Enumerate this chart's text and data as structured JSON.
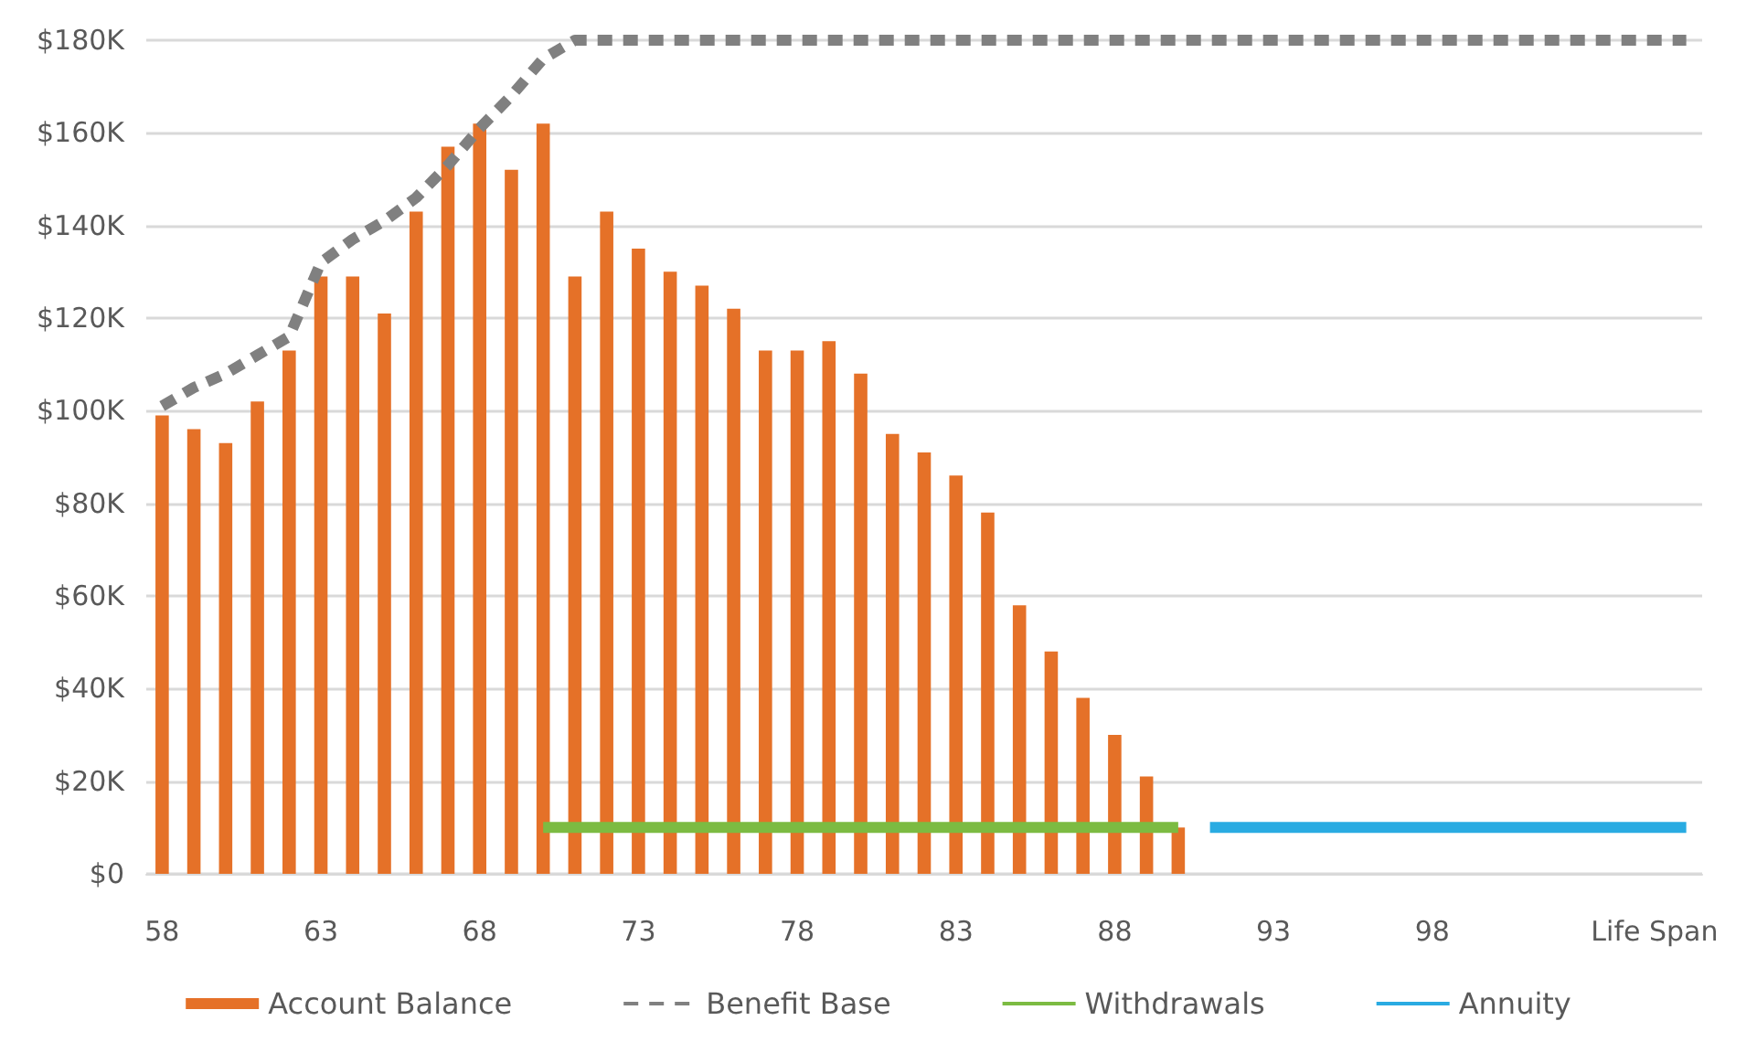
{
  "chart_data": {
    "type": "bar",
    "categories": [
      "58",
      null,
      null,
      null,
      null,
      "63",
      null,
      null,
      null,
      null,
      "68",
      null,
      null,
      null,
      null,
      "73",
      null,
      null,
      null,
      null,
      "78",
      null,
      null,
      null,
      null,
      "83",
      null,
      null,
      null,
      null,
      "88",
      null,
      null,
      null,
      null,
      "93",
      null,
      null,
      null,
      null,
      "98",
      null,
      null,
      null,
      null,
      null,
      null,
      "Life Span",
      null
    ],
    "series": [
      {
        "name": "Account Balance",
        "color": "#e57128",
        "values": [
          99,
          96,
          93,
          102,
          113,
          129,
          129,
          121,
          143,
          157,
          162,
          152,
          162,
          129,
          143,
          135,
          130,
          127,
          122,
          113,
          113,
          115,
          108,
          95,
          91,
          86,
          78,
          58,
          48,
          38,
          30,
          21,
          10,
          null,
          null,
          null,
          null,
          null,
          null,
          null,
          null,
          null,
          null,
          null,
          null,
          null,
          null,
          null,
          null
        ]
      },
      {
        "name": "Benefit Base",
        "type": "line",
        "color": "#808080",
        "line_style": "dashed",
        "values": [
          101,
          105,
          108,
          112,
          116,
          132,
          137,
          141,
          146,
          153,
          161,
          168,
          176,
          180,
          180,
          180,
          180,
          180,
          180,
          180,
          180,
          180,
          180,
          180,
          180,
          180,
          180,
          180,
          180,
          180,
          180,
          180,
          180,
          180,
          180,
          180,
          180,
          180,
          180,
          180,
          180,
          180,
          180,
          180,
          180,
          180,
          180,
          180,
          180
        ]
      },
      {
        "name": "Withdrawals",
        "type": "line",
        "color": "#7cbb42",
        "line_style": "solid",
        "values": [
          null,
          null,
          null,
          null,
          null,
          null,
          null,
          null,
          null,
          null,
          null,
          null,
          10,
          10,
          10,
          10,
          10,
          10,
          10,
          10,
          10,
          10,
          10,
          10,
          10,
          10,
          10,
          10,
          10,
          10,
          10,
          10,
          10,
          null,
          null,
          null,
          null,
          null,
          null,
          null,
          null,
          null,
          null,
          null,
          null,
          null,
          null,
          null,
          null
        ]
      },
      {
        "name": "Annuity",
        "type": "line",
        "color": "#29abe2",
        "line_style": "solid",
        "values": [
          null,
          null,
          null,
          null,
          null,
          null,
          null,
          null,
          null,
          null,
          null,
          null,
          null,
          null,
          null,
          null,
          null,
          null,
          null,
          null,
          null,
          null,
          null,
          null,
          null,
          null,
          null,
          null,
          null,
          null,
          null,
          null,
          null,
          10,
          10,
          10,
          10,
          10,
          10,
          10,
          10,
          10,
          10,
          10,
          10,
          10,
          10,
          10,
          10
        ]
      }
    ],
    "ylim": [
      0,
      180
    ],
    "yticks": [
      {
        "value": 0,
        "label": "$0"
      },
      {
        "value": 20,
        "label": "$20K"
      },
      {
        "value": 40,
        "label": "$40K"
      },
      {
        "value": 60,
        "label": "$60K"
      },
      {
        "value": 80,
        "label": "$80K"
      },
      {
        "value": 100,
        "label": "$100K"
      },
      {
        "value": 120,
        "label": "$120K"
      },
      {
        "value": 140,
        "label": "$140K"
      },
      {
        "value": 160,
        "label": "$160K"
      },
      {
        "value": 180,
        "label": "$180K"
      }
    ],
    "grid": "y",
    "legend": "bottom",
    "marker": "none"
  }
}
